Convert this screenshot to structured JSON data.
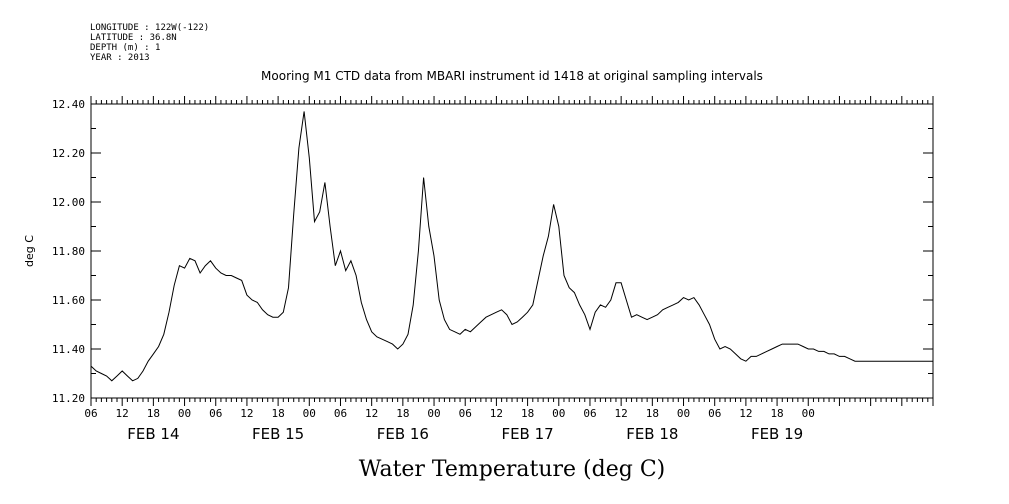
{
  "header": {
    "meta_lines": [
      "LONGITUDE : 122W(-122)",
      "LATITUDE : 36.8N",
      "DEPTH (m) : 1",
      "YEAR : 2013"
    ]
  },
  "chart_data": {
    "type": "line",
    "title": "Mooring M1 CTD data from MBARI instrument id 1418 at original sampling intervals",
    "xlabel": "Water Temperature (deg C)",
    "ylabel": "deg C",
    "ylim": [
      11.2,
      12.4
    ],
    "xlim": [
      -18,
      144
    ],
    "x_unit": "hours since FEB 14 00:00 (2013)",
    "y_ticks": [
      "11.20",
      "11.40",
      "11.60",
      "11.80",
      "12.00",
      "12.20",
      "12.40"
    ],
    "hour_tick_labels": [
      "06",
      "12",
      "18",
      "00",
      "06",
      "12",
      "18",
      "00",
      "06",
      "12",
      "18",
      "00",
      "06",
      "12",
      "18",
      "00",
      "06",
      "12",
      "18",
      "00",
      "06",
      "12",
      "18",
      "00"
    ],
    "day_labels": [
      "FEB 14",
      "FEB 15",
      "FEB 16",
      "FEB 17",
      "FEB 18",
      "FEB 19"
    ],
    "series": [
      {
        "x": [
          -18,
          -17,
          -16,
          -15,
          -14,
          -13,
          -12,
          -11,
          -10,
          -9,
          -8,
          -7,
          -6,
          -5,
          -4,
          -3,
          -2,
          -1,
          0,
          1,
          2,
          3,
          4,
          5,
          6,
          7,
          8,
          9,
          10,
          11,
          12,
          13,
          14,
          15,
          16,
          17,
          18,
          19,
          20,
          21,
          22,
          23,
          24,
          25,
          26,
          27,
          28,
          29,
          30,
          31,
          32,
          33,
          34,
          35,
          36,
          37,
          38,
          39,
          40,
          41,
          42,
          43,
          44,
          45,
          46,
          47,
          48,
          49,
          50,
          51,
          52,
          53,
          54,
          55,
          56,
          57,
          58,
          59,
          60,
          61,
          62,
          63,
          64,
          65,
          66,
          67,
          68,
          69,
          70,
          71,
          72,
          73,
          74,
          75,
          76,
          77,
          78,
          79,
          80,
          81,
          82,
          83,
          84,
          85,
          86,
          87,
          88,
          89,
          90,
          91,
          92,
          93,
          94,
          95,
          96,
          97,
          98,
          99,
          100,
          101,
          102,
          103,
          104,
          105,
          106,
          107,
          108,
          109,
          110,
          111,
          112,
          113,
          114,
          115,
          116,
          117,
          118,
          119,
          120,
          121,
          122,
          123,
          124,
          125,
          126,
          127,
          128,
          129,
          130,
          131,
          132,
          133,
          134,
          135,
          136,
          137,
          138,
          139,
          140,
          141,
          142,
          143,
          144
        ],
        "values": [
          11.33,
          11.31,
          11.3,
          11.29,
          11.27,
          11.29,
          11.31,
          11.29,
          11.27,
          11.28,
          11.31,
          11.35,
          11.38,
          11.41,
          11.46,
          11.55,
          11.66,
          11.74,
          11.73,
          11.77,
          11.76,
          11.71,
          11.74,
          11.76,
          11.73,
          11.71,
          11.7,
          11.7,
          11.69,
          11.68,
          11.62,
          11.6,
          11.59,
          11.56,
          11.54,
          11.53,
          11.53,
          11.55,
          11.65,
          11.95,
          12.22,
          12.37,
          12.18,
          11.92,
          11.96,
          12.08,
          11.9,
          11.74,
          11.8,
          11.72,
          11.76,
          11.7,
          11.59,
          11.52,
          11.47,
          11.45,
          11.44,
          11.43,
          11.42,
          11.4,
          11.42,
          11.46,
          11.58,
          11.8,
          12.1,
          11.9,
          11.78,
          11.6,
          11.52,
          11.48,
          11.47,
          11.46,
          11.48,
          11.47,
          11.49,
          11.51,
          11.53,
          11.54,
          11.55,
          11.56,
          11.54,
          11.5,
          11.51,
          11.53,
          11.55,
          11.58,
          11.68,
          11.78,
          11.86,
          11.99,
          11.9,
          11.7,
          11.65,
          11.63,
          11.58,
          11.54,
          11.48,
          11.55,
          11.58,
          11.57,
          11.6,
          11.67,
          11.67,
          11.6,
          11.53,
          11.54,
          11.53,
          11.52,
          11.53,
          11.54,
          11.56,
          11.57,
          11.58,
          11.59,
          11.61,
          11.6,
          11.61,
          11.58,
          11.54,
          11.5,
          11.44,
          11.4,
          11.41,
          11.4,
          11.38,
          11.36,
          11.35,
          11.37,
          11.37,
          11.38,
          11.39,
          11.4,
          11.41,
          11.42,
          11.42,
          11.42,
          11.42,
          11.41,
          11.4,
          11.4,
          11.39,
          11.39,
          11.38,
          11.38,
          11.37,
          11.37,
          11.36,
          11.35,
          11.35,
          11.35,
          11.35,
          11.35,
          11.35,
          11.35,
          11.35,
          11.35,
          11.35,
          11.35,
          11.35,
          11.35,
          11.35,
          11.35,
          11.35
        ]
      }
    ],
    "colors": {
      "line": "#000000",
      "axes": "#000000",
      "background": "#ffffff"
    }
  }
}
